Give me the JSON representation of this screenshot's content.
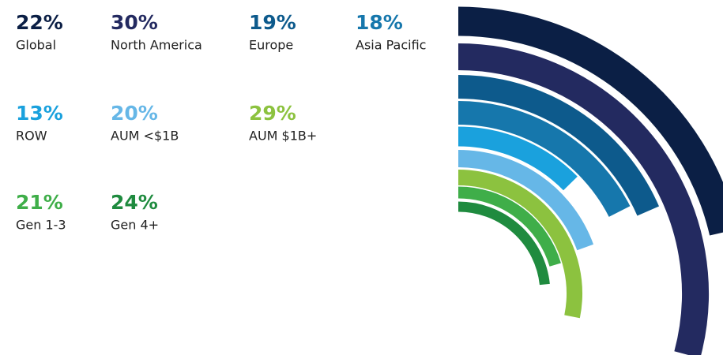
{
  "chart_data": {
    "type": "radial-bar",
    "categories": [
      "Global",
      "North America",
      "Europe",
      "Asia Pacific",
      "ROW",
      "AUM <$1B",
      "AUM $1B+",
      "Gen 1-3",
      "Gen 4+"
    ],
    "values": [
      22,
      30,
      19,
      18,
      13,
      20,
      29,
      21,
      24
    ],
    "value_labels": [
      "22%",
      "30%",
      "19%",
      "18%",
      "13%",
      "20%",
      "29%",
      "21%",
      "24%"
    ],
    "colors": [
      "#0b1f45",
      "#232a60",
      "#0d5a8c",
      "#1677ac",
      "#1aa1dd",
      "#66b7e7",
      "#8cc23f",
      "#3fae49",
      "#1f8b3f"
    ]
  }
}
